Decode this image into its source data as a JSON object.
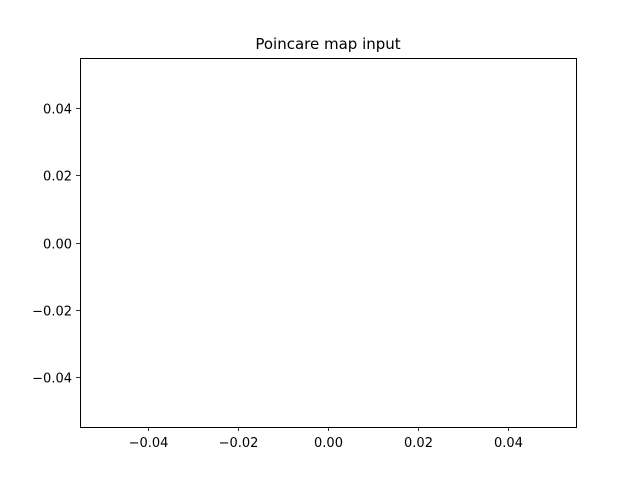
{
  "chart_data": {
    "type": "scatter",
    "title": "Poincare map input",
    "xlabel": "",
    "ylabel": "",
    "xlim": [
      -0.055,
      0.055
    ],
    "ylim": [
      -0.055,
      0.055
    ],
    "x_ticks": [
      -0.04,
      -0.02,
      0.0,
      0.02,
      0.04
    ],
    "x_tick_labels": [
      "−0.04",
      "−0.02",
      "0.00",
      "0.02",
      "0.04"
    ],
    "y_ticks": [
      -0.04,
      -0.02,
      0.0,
      0.02,
      0.04
    ],
    "y_tick_labels": [
      "−0.04",
      "−0.02",
      "0.00",
      "0.02",
      "0.04"
    ],
    "grid": false,
    "legend": "none",
    "series": [
      {
        "x": [],
        "y": []
      }
    ],
    "colors": {
      "axes": "#000000",
      "background": "#ffffff"
    }
  }
}
